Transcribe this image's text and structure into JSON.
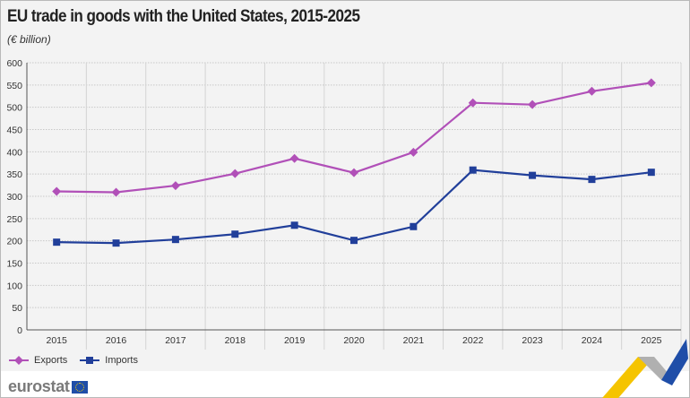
{
  "chart_data": {
    "type": "line",
    "title": "EU trade in goods with the United States, 2015-2025",
    "subtitle": "(€ billion)",
    "xlabel": "",
    "ylabel": "",
    "categories": [
      "2015",
      "2016",
      "2017",
      "2018",
      "2019",
      "2020",
      "2021",
      "2022",
      "2023",
      "2024",
      "2025"
    ],
    "ylim": [
      0,
      600
    ],
    "yticks": [
      "0",
      "50",
      "100",
      "150",
      "200",
      "250",
      "300",
      "350",
      "400",
      "450",
      "500",
      "550",
      "600"
    ],
    "grid": true,
    "legend_position": "bottom-left",
    "series": [
      {
        "name": "Exports",
        "color": "#b150b8",
        "marker": "diamond",
        "values": [
          311,
          309,
          324,
          351,
          385,
          353,
          399,
          510,
          506,
          536,
          555
        ]
      },
      {
        "name": "Imports",
        "color": "#213f9a",
        "marker": "square",
        "values": [
          197,
          195,
          203,
          215,
          235,
          201,
          232,
          359,
          347,
          338,
          354
        ]
      }
    ]
  },
  "footer": {
    "brand": "eurostat"
  }
}
